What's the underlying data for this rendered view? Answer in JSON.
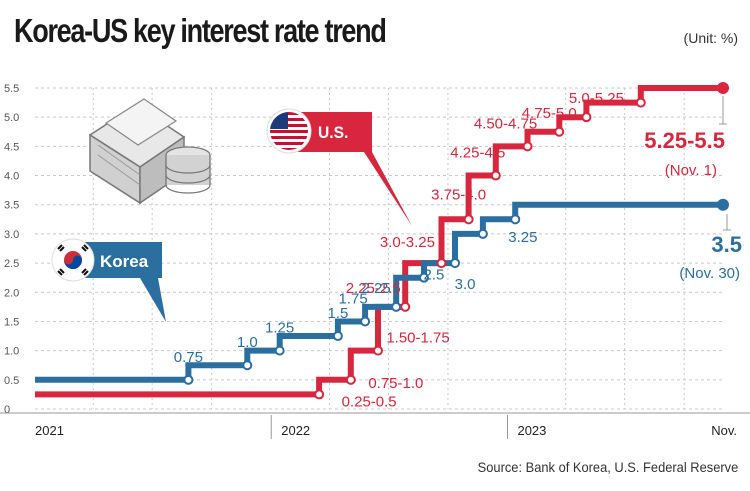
{
  "header": {
    "title": "Korea-US key interest rate trend",
    "unit": "(Unit: %)",
    "source": "Source: Bank of Korea, U.S. Federal Reserve"
  },
  "colors": {
    "us": "#d7263d",
    "korea": "#2b6ea0",
    "axis": "#999999",
    "grid": "#c8c8c8"
  },
  "icons": [
    "money-stack-icon",
    "us-flag-icon",
    "korea-flag-icon"
  ],
  "chart_data": {
    "type": "line",
    "title": "Korea-US key interest rate trend",
    "step": true,
    "ylim": [
      0,
      5.5
    ],
    "yticks": [
      "0",
      "0.5",
      "1.0",
      "1.5",
      "2.0",
      "2.5",
      "3.0",
      "3.5",
      "4.0",
      "4.5",
      "5.0",
      "5.5"
    ],
    "xticks": [
      "2021",
      "2022",
      "2023",
      "Nov."
    ],
    "grid": true,
    "series": [
      {
        "name": "U.S.",
        "end_value": "5.25-5.5",
        "end_date": "(Nov. 1)",
        "x": [
          "2021-01-01",
          "2022-03-16",
          "2022-05-04",
          "2022-06-15",
          "2022-07-27",
          "2022-09-21",
          "2022-11-02",
          "2022-12-14",
          "2023-02-01",
          "2023-03-22",
          "2023-05-03",
          "2023-07-26",
          "2023-11-30"
        ],
        "values": [
          0.25,
          0.5,
          1.0,
          1.75,
          2.5,
          3.25,
          4.0,
          4.5,
          4.75,
          5.0,
          5.25,
          5.5,
          5.5
        ],
        "labels": [
          "",
          "0.25-0.5",
          "0.75-1.0",
          "1.50-1.75",
          "2.25-2.5",
          "3.0-3.25",
          "3.75-4.0",
          "4.25-4.5",
          "4.50-4.75",
          "4.75-5.0",
          "5.0-5.25",
          "",
          ""
        ]
      },
      {
        "name": "Korea",
        "end_value": "3.5",
        "end_date": "(Nov. 30)",
        "x": [
          "2021-01-01",
          "2021-08-26",
          "2021-11-25",
          "2022-01-14",
          "2022-04-14",
          "2022-05-26",
          "2022-07-13",
          "2022-08-25",
          "2022-10-12",
          "2022-11-24",
          "2023-01-13",
          "2023-11-30"
        ],
        "values": [
          0.5,
          0.75,
          1.0,
          1.25,
          1.5,
          1.75,
          2.25,
          2.5,
          3.0,
          3.25,
          3.5,
          3.5
        ],
        "labels": [
          "",
          "0.75",
          "1.0",
          "1.25",
          "1.5",
          "1.75",
          "2.25",
          "2.5",
          "3.0",
          "3.25",
          "",
          ""
        ]
      }
    ]
  }
}
